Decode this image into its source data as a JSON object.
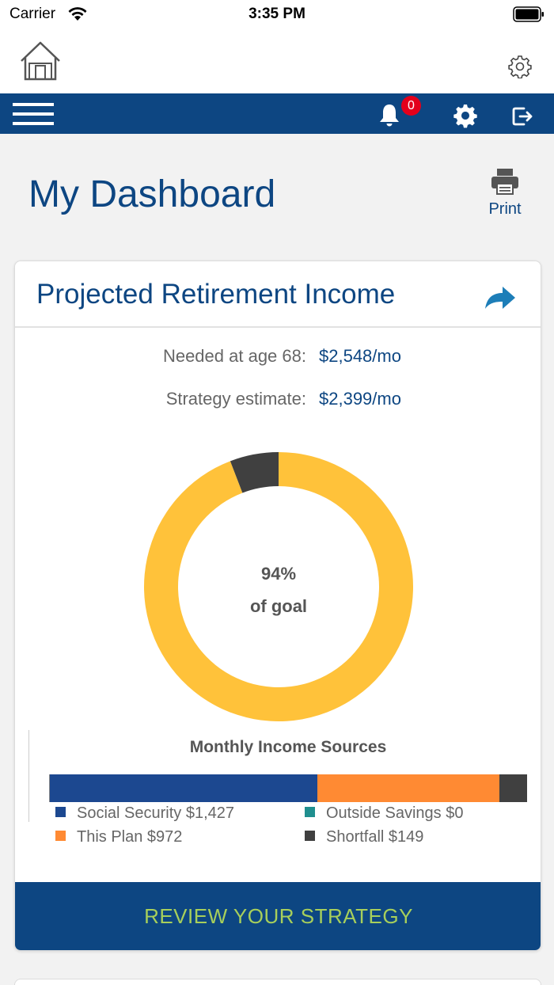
{
  "status_bar": {
    "carrier": "Carrier",
    "time": "3:35 PM"
  },
  "nav": {
    "notification_count": "0"
  },
  "page": {
    "title": "My Dashboard",
    "print_label": "Print"
  },
  "card": {
    "title": "Projected Retirement Income",
    "needed_label": "Needed at age 68:",
    "needed_value": "$2,548/mo",
    "estimate_label": "Strategy estimate:",
    "estimate_value": "$2,399/mo",
    "cta_label": "REVIEW YOUR STRATEGY"
  },
  "chart_data": [
    {
      "type": "pie",
      "center_value": "94%",
      "center_label": "of goal",
      "slices": [
        {
          "label": "Strategy estimate",
          "value": 2399,
          "color": "#ffc23a"
        },
        {
          "label": "Shortfall",
          "value": 149,
          "color": "#404040"
        }
      ]
    },
    {
      "type": "bar",
      "stacked": true,
      "orientation": "horizontal",
      "title": "Monthly Income Sources",
      "series": [
        {
          "name": "Social Security $1,427",
          "value": 1427,
          "color": "#1c4890"
        },
        {
          "name": "This Plan $972",
          "value": 972,
          "color": "#ff8a33"
        },
        {
          "name": "Outside Savings $0",
          "value": 0,
          "color": "#1f8f8f"
        },
        {
          "name": "Shortfall $149",
          "value": 149,
          "color": "#404040"
        }
      ]
    }
  ]
}
